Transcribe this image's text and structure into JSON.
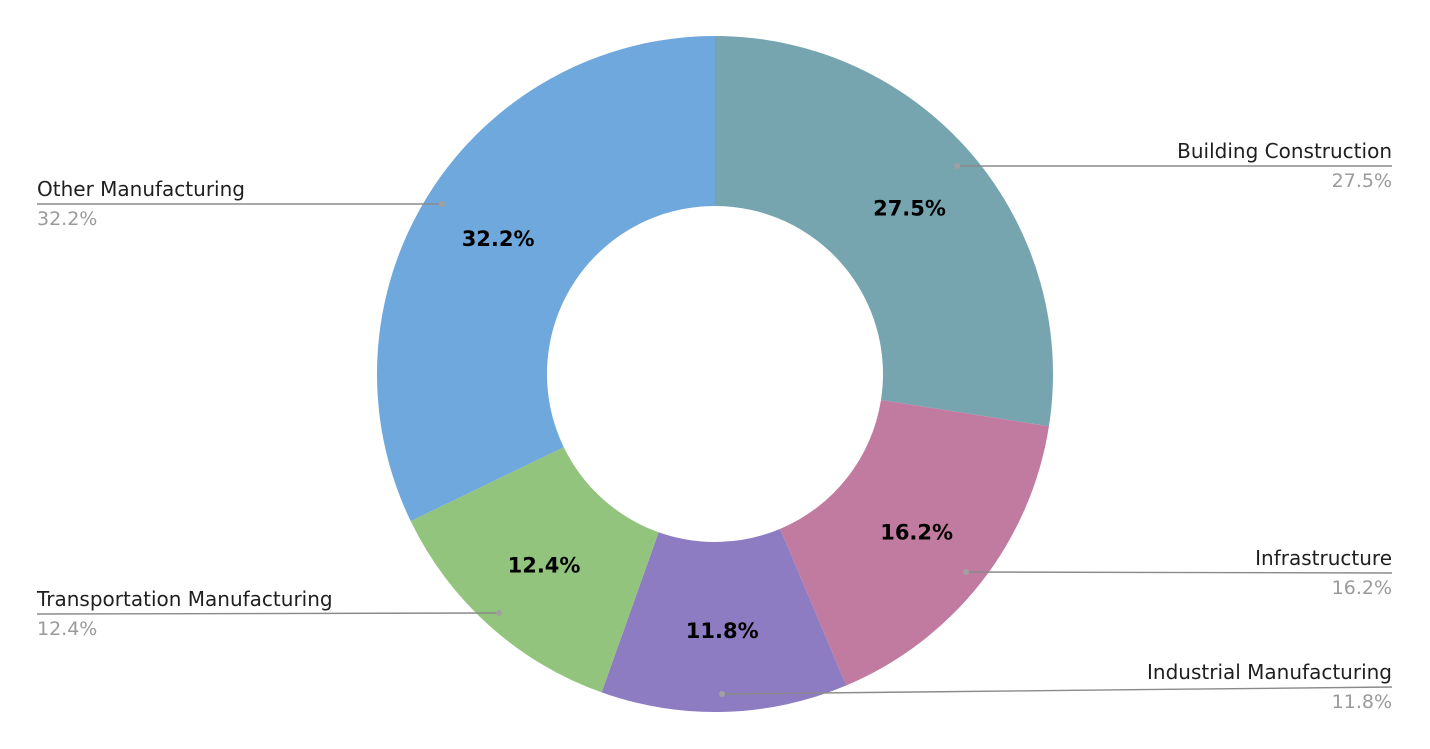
{
  "chart_data": {
    "type": "pie",
    "style": "donut",
    "categories": [
      "Building Construction",
      "Infrastructure",
      "Industrial Manufacturing",
      "Transportation Manufacturing",
      "Other Manufacturing"
    ],
    "values": [
      27.5,
      16.2,
      11.8,
      12.4,
      32.2
    ],
    "value_labels": [
      "27.5%",
      "16.2%",
      "11.8%",
      "12.4%",
      "32.2%"
    ],
    "colors": [
      "#76a5af",
      "#c27ba0",
      "#8e7cc3",
      "#93c47d",
      "#6fa8dc"
    ],
    "start": "12 o'clock",
    "direction": "clockwise",
    "legend": "callouts outside the ring",
    "title": ""
  }
}
